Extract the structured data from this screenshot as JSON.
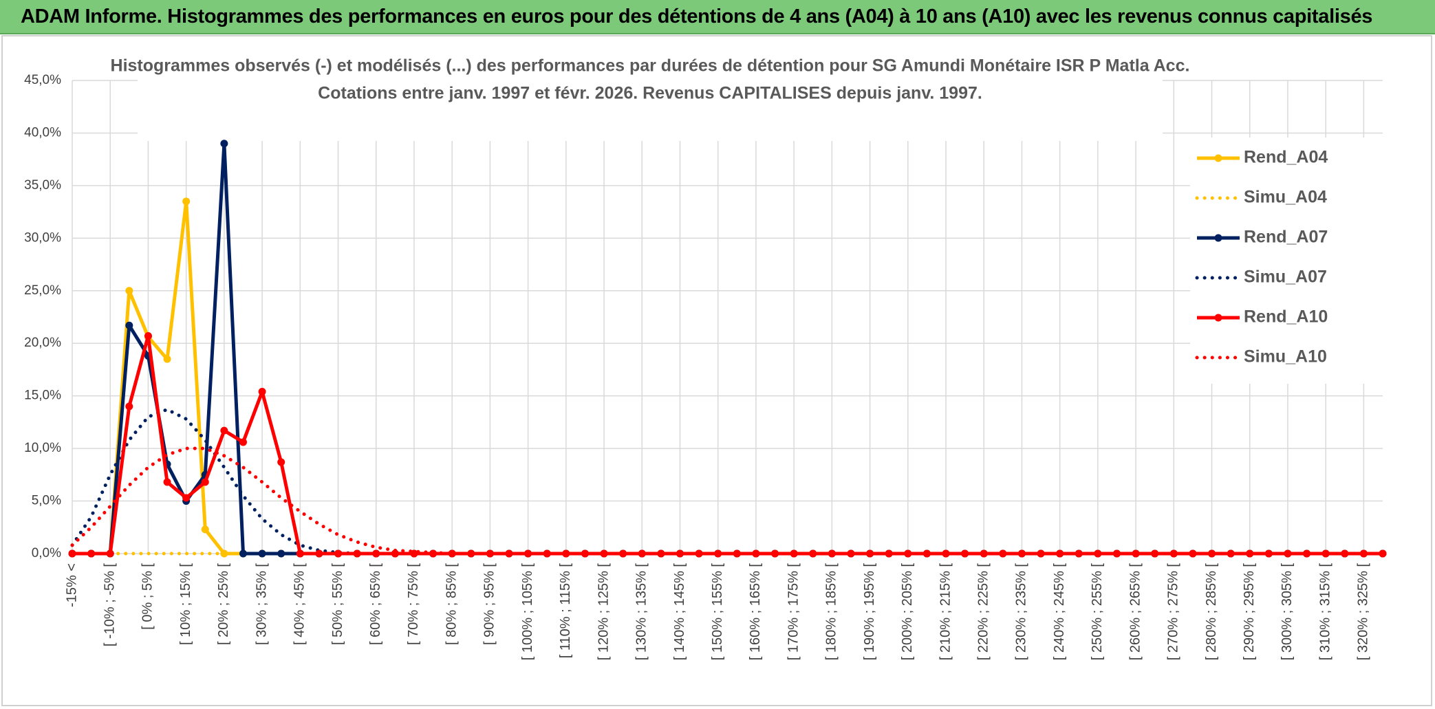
{
  "header": {
    "title": "ADAM Informe. Histogrammes des performances en euros pour des détentions de 4 ans (A04) à 10 ans (A10) avec les revenus connus capitalisés"
  },
  "chart_data": {
    "type": "line",
    "title": "Histogrammes observés (-) et modélisés (...) des performances par durées de détention pour SG Amundi Monétaire ISR P Matla Acc.",
    "subtitle": "Cotations entre janv. 1997 et févr. 2026. Revenus CAPITALISES depuis janv. 1997.",
    "categories": [
      "-15% <",
      null,
      "[ -10% ; -5% [",
      null,
      "[ 0% ; 5% [",
      null,
      "[ 10% ; 15% [",
      null,
      "[ 20% ; 25% [",
      null,
      "[ 30% ; 35% [",
      null,
      "[ 40% ; 45% [",
      null,
      "[ 50% ; 55% [",
      null,
      "[ 60% ; 65% [",
      null,
      "[ 70% ; 75% [",
      null,
      "[ 80% ; 85% [",
      null,
      "[ 90% ; 95% [",
      null,
      "[ 100% ; 105% [",
      null,
      "[ 110% ; 115% [",
      null,
      "[ 120% ; 125% [",
      null,
      "[ 130% ; 135% [",
      null,
      "[ 140% ; 145% [",
      null,
      "[ 150% ; 155% [",
      null,
      "[ 160% ; 165% [",
      null,
      "[ 170% ; 175% [",
      null,
      "[ 180% ; 185% [",
      null,
      "[ 190% ; 195% [",
      null,
      "[ 200% ; 205% [",
      null,
      "[ 210% ; 215% [",
      null,
      "[ 220% ; 225% [",
      null,
      "[ 230% ; 235% [",
      null,
      "[ 240% ; 245% [",
      null,
      "[ 250% ; 255% [",
      null,
      "[ 260% ; 265% [",
      null,
      "[ 270% ; 275% [",
      null,
      "[ 280% ; 285% [",
      null,
      "[ 290% ; 295% [",
      null,
      "[ 300% ; 305% [",
      null,
      "[ 310% ; 315% [",
      null,
      "[ 320% ; 325% [",
      null
    ],
    "series": [
      {
        "name": "Rend_A04",
        "color": "#ffc000",
        "dotted": false,
        "markers": true,
        "values": [
          0,
          0,
          0,
          25.0,
          20.6,
          18.5,
          33.5,
          2.3,
          0,
          0,
          0,
          0,
          0,
          0,
          0,
          0,
          0,
          0,
          0,
          0,
          0,
          0,
          0,
          0,
          0,
          0,
          0,
          0,
          0,
          0,
          0,
          0,
          0,
          0,
          0,
          0,
          0,
          0,
          0,
          0,
          0,
          0,
          0,
          0,
          0,
          0,
          0,
          0,
          0,
          0,
          0,
          0,
          0,
          0,
          0,
          0,
          0,
          0,
          0,
          0,
          0,
          0,
          0,
          0,
          0,
          0,
          0,
          0,
          0,
          0
        ]
      },
      {
        "name": "Simu_A04",
        "color": "#ffc000",
        "dotted": true,
        "markers": false,
        "values": [
          0,
          0,
          0,
          0,
          0,
          0,
          0,
          0,
          0,
          0,
          0,
          0,
          0,
          0,
          0,
          0,
          0,
          0,
          0,
          0,
          0,
          0,
          0,
          0,
          0,
          0,
          0,
          0,
          0,
          0,
          0,
          0,
          0,
          0,
          0,
          0,
          0,
          0,
          0,
          0,
          0,
          0,
          0,
          0,
          0,
          0,
          0,
          0,
          0,
          0,
          0,
          0,
          0,
          0,
          0,
          0,
          0,
          0,
          0,
          0,
          0,
          0,
          0,
          0,
          0,
          0,
          0,
          0,
          0,
          0
        ]
      },
      {
        "name": "Rend_A07",
        "color": "#002060",
        "dotted": false,
        "markers": true,
        "values": [
          0,
          0,
          0,
          21.7,
          18.8,
          8.5,
          5.0,
          7.5,
          39.0,
          0,
          0,
          0,
          0,
          0,
          0,
          0,
          0,
          0,
          0,
          0,
          0,
          0,
          0,
          0,
          0,
          0,
          0,
          0,
          0,
          0,
          0,
          0,
          0,
          0,
          0,
          0,
          0,
          0,
          0,
          0,
          0,
          0,
          0,
          0,
          0,
          0,
          0,
          0,
          0,
          0,
          0,
          0,
          0,
          0,
          0,
          0,
          0,
          0,
          0,
          0,
          0,
          0,
          0,
          0,
          0,
          0,
          0,
          0,
          0,
          0
        ]
      },
      {
        "name": "Simu_A07",
        "color": "#002060",
        "dotted": true,
        "markers": false,
        "values": [
          0.8,
          3.5,
          7.5,
          10.8,
          13.0,
          13.7,
          12.8,
          10.8,
          8.2,
          5.5,
          3.3,
          1.8,
          0.8,
          0.3,
          0.1,
          0,
          0,
          0,
          0,
          0,
          0,
          0,
          0,
          0,
          0,
          0,
          0,
          0,
          0,
          0,
          0,
          0,
          0,
          0,
          0,
          0,
          0,
          0,
          0,
          0,
          0,
          0,
          0,
          0,
          0,
          0,
          0,
          0,
          0,
          0,
          0,
          0,
          0,
          0,
          0,
          0,
          0,
          0,
          0,
          0,
          0,
          0,
          0,
          0,
          0,
          0,
          0,
          0,
          0,
          0
        ]
      },
      {
        "name": "Rend_A10",
        "color": "#ff0000",
        "dotted": false,
        "markers": true,
        "values": [
          0,
          0,
          0,
          14.0,
          20.7,
          6.8,
          5.3,
          6.8,
          11.7,
          10.6,
          15.4,
          8.7,
          0,
          0,
          0,
          0,
          0,
          0,
          0,
          0,
          0,
          0,
          0,
          0,
          0,
          0,
          0,
          0,
          0,
          0,
          0,
          0,
          0,
          0,
          0,
          0,
          0,
          0,
          0,
          0,
          0,
          0,
          0,
          0,
          0,
          0,
          0,
          0,
          0,
          0,
          0,
          0,
          0,
          0,
          0,
          0,
          0,
          0,
          0,
          0,
          0,
          0,
          0,
          0,
          0,
          0,
          0,
          0,
          0,
          0
        ]
      },
      {
        "name": "Simu_A10",
        "color": "#ff0000",
        "dotted": true,
        "markers": false,
        "values": [
          0.8,
          2.5,
          4.5,
          6.5,
          8.2,
          9.4,
          10.0,
          10.0,
          9.3,
          8.2,
          6.8,
          5.3,
          4.0,
          2.8,
          1.8,
          1.1,
          0.6,
          0.3,
          0.2,
          0.1,
          0,
          0,
          0,
          0,
          0,
          0,
          0,
          0,
          0,
          0,
          0,
          0,
          0,
          0,
          0,
          0,
          0,
          0,
          0,
          0,
          0,
          0,
          0,
          0,
          0,
          0,
          0,
          0,
          0,
          0,
          0,
          0,
          0,
          0,
          0,
          0,
          0,
          0,
          0,
          0,
          0,
          0,
          0,
          0,
          0,
          0,
          0,
          0,
          0,
          0
        ]
      }
    ],
    "ylim": [
      0,
      45
    ],
    "yticks": [
      {
        "value": 0,
        "label": "0,0%"
      },
      {
        "value": 5,
        "label": "5,0%"
      },
      {
        "value": 10,
        "label": "10,0%"
      },
      {
        "value": 15,
        "label": "15,0%"
      },
      {
        "value": 20,
        "label": "20,0%"
      },
      {
        "value": 25,
        "label": "25,0%"
      },
      {
        "value": 30,
        "label": "30,0%"
      },
      {
        "value": 35,
        "label": "35,0%"
      },
      {
        "value": 40,
        "label": "40,0%"
      },
      {
        "value": 45,
        "label": "45,0%"
      }
    ],
    "grid": true,
    "legend": "right"
  }
}
